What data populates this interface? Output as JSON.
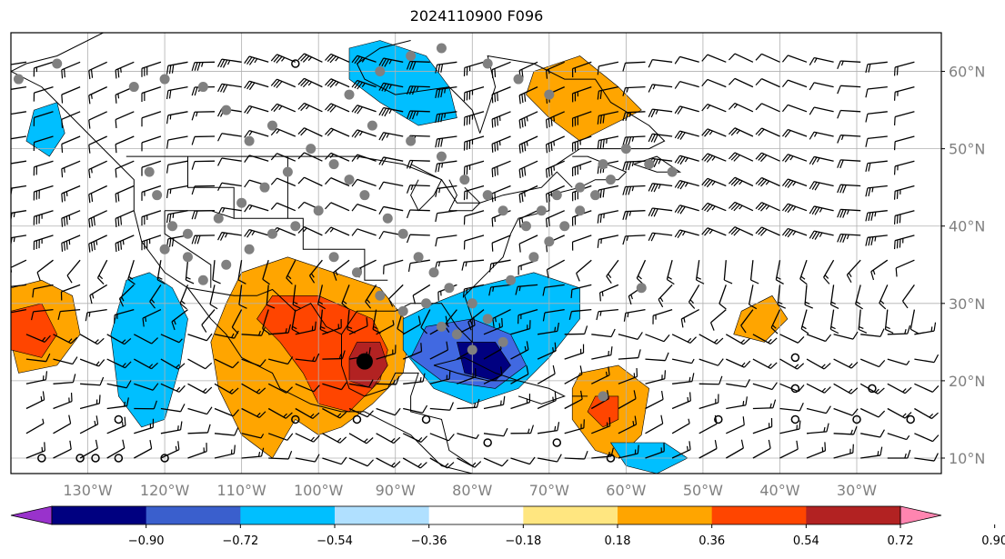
{
  "title": "2024110900 F096",
  "map": {
    "lon_range": [
      -140,
      -19
    ],
    "lat_range": [
      8,
      65
    ],
    "lon_ticks": [
      -130,
      -120,
      -110,
      -100,
      -90,
      -80,
      -70,
      -60,
      -50,
      -40,
      -30
    ],
    "lon_tick_labels": [
      "130°W",
      "120°W",
      "110°W",
      "100°W",
      "90°W",
      "80°W",
      "70°W",
      "60°W",
      "50°W",
      "40°W",
      "30°W"
    ],
    "lat_ticks": [
      10,
      20,
      30,
      40,
      50,
      60
    ],
    "lat_tick_labels": [
      "10°N",
      "20°N",
      "30°N",
      "40°N",
      "50°N",
      "60°N"
    ],
    "grid": true,
    "filled_regions": [
      {
        "color": "#00bfff",
        "points": [
          [
            -96,
            63
          ],
          [
            -92,
            64
          ],
          [
            -86,
            62
          ],
          [
            -83,
            58
          ],
          [
            -82,
            54
          ],
          [
            -87,
            53
          ],
          [
            -92,
            56
          ],
          [
            -96,
            59
          ]
        ]
      },
      {
        "color": "#ffa500",
        "points": [
          [
            -72,
            60
          ],
          [
            -66,
            62
          ],
          [
            -61,
            58
          ],
          [
            -58,
            55
          ],
          [
            -62,
            53
          ],
          [
            -66,
            51
          ],
          [
            -70,
            54
          ],
          [
            -73,
            57
          ]
        ]
      },
      {
        "color": "#00bfff",
        "points": [
          [
            -137,
            55
          ],
          [
            -134,
            56
          ],
          [
            -133,
            52
          ],
          [
            -135,
            49
          ],
          [
            -138,
            51
          ]
        ]
      },
      {
        "color": "#ffa500",
        "points": [
          [
            -140,
            32
          ],
          [
            -136,
            33
          ],
          [
            -132,
            31
          ],
          [
            -131,
            26
          ],
          [
            -134,
            22
          ],
          [
            -139,
            21
          ],
          [
            -140,
            25
          ]
        ]
      },
      {
        "color": "#ff4500",
        "points": [
          [
            -140,
            29
          ],
          [
            -136,
            30
          ],
          [
            -134,
            26
          ],
          [
            -136,
            23
          ],
          [
            -140,
            24
          ]
        ]
      },
      {
        "color": "#00bfff",
        "points": [
          [
            -125,
            33
          ],
          [
            -122,
            34
          ],
          [
            -119,
            32
          ],
          [
            -117,
            28
          ],
          [
            -118,
            22
          ],
          [
            -120,
            15
          ],
          [
            -123,
            14
          ],
          [
            -126,
            18
          ],
          [
            -127,
            26
          ]
        ]
      },
      {
        "color": "#ffa500",
        "points": [
          [
            -110,
            34
          ],
          [
            -104,
            36
          ],
          [
            -98,
            34
          ],
          [
            -92,
            32
          ],
          [
            -88,
            27
          ],
          [
            -89,
            21
          ],
          [
            -93,
            17
          ],
          [
            -97,
            14
          ],
          [
            -100,
            13
          ],
          [
            -103,
            15
          ],
          [
            -106,
            10
          ],
          [
            -110,
            13
          ],
          [
            -113,
            19
          ],
          [
            -114,
            25
          ],
          [
            -112,
            30
          ]
        ]
      },
      {
        "color": "#ff4500",
        "points": [
          [
            -106,
            31
          ],
          [
            -100,
            31
          ],
          [
            -93,
            28
          ],
          [
            -91,
            24
          ],
          [
            -92,
            20
          ],
          [
            -96,
            16
          ],
          [
            -100,
            17
          ],
          [
            -102,
            21
          ],
          [
            -105,
            25
          ],
          [
            -108,
            28
          ]
        ]
      },
      {
        "color": "#b22222",
        "points": [
          [
            -95,
            25
          ],
          [
            -92,
            25
          ],
          [
            -91,
            22
          ],
          [
            -93,
            19
          ],
          [
            -96,
            20
          ],
          [
            -96,
            23
          ]
        ]
      },
      {
        "color": "#00bfff",
        "points": [
          [
            -85,
            30
          ],
          [
            -80,
            32
          ],
          [
            -72,
            34
          ],
          [
            -66,
            32
          ],
          [
            -66,
            28
          ],
          [
            -70,
            23
          ],
          [
            -74,
            19
          ],
          [
            -80,
            17
          ],
          [
            -85,
            19
          ],
          [
            -89,
            24
          ],
          [
            -89,
            28
          ]
        ]
      },
      {
        "color": "#4169e1",
        "points": [
          [
            -86,
            27
          ],
          [
            -80,
            28
          ],
          [
            -75,
            26
          ],
          [
            -73,
            22
          ],
          [
            -77,
            19
          ],
          [
            -84,
            20
          ],
          [
            -88,
            23
          ]
        ]
      },
      {
        "color": "#000080",
        "points": [
          [
            -82,
            25
          ],
          [
            -77,
            25
          ],
          [
            -75,
            22
          ],
          [
            -77,
            20
          ],
          [
            -81,
            21
          ]
        ]
      },
      {
        "color": "#ffa500",
        "points": [
          [
            -66,
            21
          ],
          [
            -61,
            22
          ],
          [
            -57,
            19
          ],
          [
            -58,
            13
          ],
          [
            -61,
            10
          ],
          [
            -64,
            11
          ],
          [
            -67,
            15
          ],
          [
            -67,
            19
          ]
        ]
      },
      {
        "color": "#ff4500",
        "points": [
          [
            -64,
            18
          ],
          [
            -61,
            18
          ],
          [
            -61,
            15
          ],
          [
            -63,
            14
          ],
          [
            -65,
            16
          ]
        ]
      },
      {
        "color": "#ffa500",
        "points": [
          [
            -45,
            29
          ],
          [
            -41,
            31
          ],
          [
            -39,
            28
          ],
          [
            -42,
            25
          ],
          [
            -46,
            26
          ]
        ]
      },
      {
        "color": "#00bfff",
        "points": [
          [
            -62,
            12
          ],
          [
            -55,
            12
          ],
          [
            -52,
            10
          ],
          [
            -56,
            8
          ],
          [
            -60,
            9
          ]
        ]
      }
    ],
    "stations_gray": [
      [
        -139,
        59
      ],
      [
        -134,
        61
      ],
      [
        -124,
        58
      ],
      [
        -120,
        59
      ],
      [
        -115,
        58
      ],
      [
        -112,
        55
      ],
      [
        -109,
        51
      ],
      [
        -106,
        53
      ],
      [
        -101,
        50
      ],
      [
        -98,
        48
      ],
      [
        -96,
        46
      ],
      [
        -94,
        44
      ],
      [
        -91,
        41
      ],
      [
        -89,
        39
      ],
      [
        -87,
        36
      ],
      [
        -85,
        34
      ],
      [
        -83,
        32
      ],
      [
        -80,
        30
      ],
      [
        -78,
        28
      ],
      [
        -76,
        25
      ],
      [
        -80,
        24
      ],
      [
        -93,
        53
      ],
      [
        -88,
        51
      ],
      [
        -84,
        49
      ],
      [
        -81,
        46
      ],
      [
        -78,
        44
      ],
      [
        -76,
        42
      ],
      [
        -73,
        40
      ],
      [
        -71,
        42
      ],
      [
        -69,
        44
      ],
      [
        -66,
        45
      ],
      [
        -63,
        48
      ],
      [
        -60,
        50
      ],
      [
        -57,
        48
      ],
      [
        -54,
        47
      ],
      [
        -100,
        42
      ],
      [
        -103,
        40
      ],
      [
        -106,
        39
      ],
      [
        -109,
        37
      ],
      [
        -112,
        35
      ],
      [
        -115,
        33
      ],
      [
        -117,
        36
      ],
      [
        -119,
        40
      ],
      [
        -121,
        44
      ],
      [
        -122,
        47
      ],
      [
        -98,
        36
      ],
      [
        -95,
        34
      ],
      [
        -92,
        31
      ],
      [
        -89,
        29
      ],
      [
        -86,
        30
      ],
      [
        -84,
        27
      ],
      [
        -82,
        26
      ],
      [
        -75,
        33
      ],
      [
        -72,
        36
      ],
      [
        -70,
        38
      ],
      [
        -68,
        40
      ],
      [
        -66,
        42
      ],
      [
        -64,
        44
      ],
      [
        -62,
        46
      ],
      [
        -96,
        57
      ],
      [
        -92,
        60
      ],
      [
        -88,
        62
      ],
      [
        -84,
        63
      ],
      [
        -78,
        61
      ],
      [
        -74,
        59
      ],
      [
        -70,
        57
      ],
      [
        -104,
        47
      ],
      [
        -107,
        45
      ],
      [
        -110,
        43
      ],
      [
        -113,
        41
      ],
      [
        -117,
        39
      ],
      [
        -120,
        37
      ],
      [
        -63,
        18
      ],
      [
        -58,
        32
      ]
    ],
    "stations_open": [
      [
        -126,
        15
      ],
      [
        -131,
        10
      ],
      [
        -136,
        10
      ],
      [
        -126,
        10
      ],
      [
        -103,
        15
      ],
      [
        -95,
        15
      ],
      [
        -86,
        15
      ],
      [
        -78,
        12
      ],
      [
        -69,
        12
      ],
      [
        -62,
        10
      ],
      [
        -48,
        15
      ],
      [
        -38,
        15
      ],
      [
        -30,
        15
      ],
      [
        -23,
        15
      ],
      [
        -38,
        19
      ],
      [
        -28,
        19
      ],
      [
        -38,
        23
      ],
      [
        -103,
        61
      ],
      [
        -129,
        10
      ],
      [
        -120,
        10
      ]
    ],
    "marker": {
      "lon": -94,
      "lat": 22.5
    },
    "wind_step": {
      "lon": 3.5,
      "lat": 3.2
    }
  },
  "colorbar": {
    "colors": [
      "#9932cc",
      "#000080",
      "#3a5fcd",
      "#00bfff",
      "#b0e0ff",
      "#ffffff",
      "#ffe680",
      "#ffa500",
      "#ff4500",
      "#b22222",
      "#ff85b0"
    ],
    "tick_labels": [
      "−0.90",
      "−0.72",
      "−0.54",
      "−0.36",
      "−0.18",
      "0.18",
      "0.36",
      "0.54",
      "0.72",
      "0.90"
    ]
  }
}
